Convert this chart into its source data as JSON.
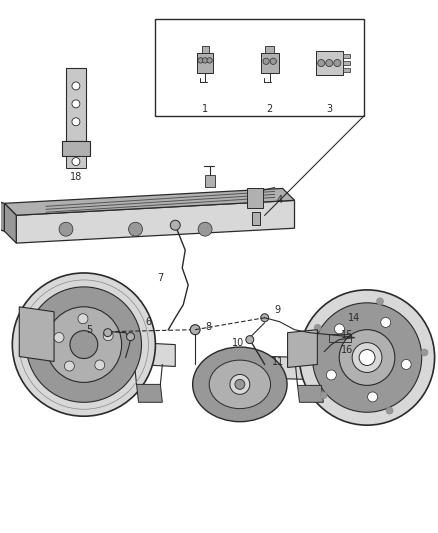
{
  "bg_color": "#ffffff",
  "lc": "#2a2a2a",
  "fig_width": 4.38,
  "fig_height": 5.33,
  "dpi": 100
}
